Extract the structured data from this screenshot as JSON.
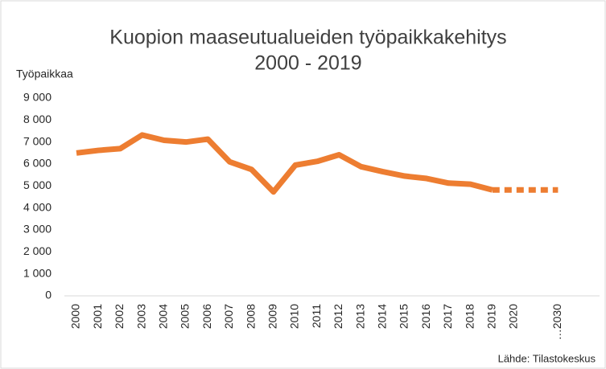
{
  "chart_data": {
    "type": "line",
    "title": [
      "Kuopion maaseutualueiden työpaikkakehitys",
      "2000 - 2019"
    ],
    "y_label": "Työpaikkaa",
    "source": "Lähde: Tilastokeskus",
    "categories": [
      "2000",
      "2001",
      "2002",
      "2003",
      "2004",
      "2005",
      "2006",
      "2007",
      "2008",
      "2009",
      "2010",
      "2011",
      "2012",
      "2013",
      "2014",
      "2015",
      "2016",
      "2017",
      "2018",
      "2019",
      "2020",
      null,
      "…2030"
    ],
    "series": [
      {
        "color": "#ed7d31",
        "style": "solid",
        "values": [
          6500,
          6620,
          6700,
          7320,
          7080,
          7000,
          7130,
          6100,
          5750,
          4730,
          5950,
          6120,
          6420,
          5880,
          5650,
          5450,
          5340,
          5130,
          5080,
          4820,
          null,
          null,
          null
        ]
      },
      {
        "color": "#ed7d31",
        "style": "dashed",
        "values": [
          null,
          null,
          null,
          null,
          null,
          null,
          null,
          null,
          null,
          null,
          null,
          null,
          null,
          null,
          null,
          null,
          null,
          null,
          null,
          4820,
          4820,
          4820,
          4820
        ]
      }
    ],
    "ylim": [
      0,
      9000
    ],
    "yticks": [
      0,
      {
        "value": 1000,
        "label": "1 000"
      },
      {
        "value": 2000,
        "label": "2 000"
      },
      {
        "value": 3000,
        "label": "3 000"
      },
      {
        "value": 4000,
        "label": "4 000"
      },
      {
        "value": 5000,
        "label": "5 000"
      },
      {
        "value": 6000,
        "label": "6 000"
      },
      {
        "value": 7000,
        "label": "7 000"
      },
      {
        "value": 8000,
        "label": "8 000"
      },
      {
        "value": 9000,
        "label": "9 000"
      }
    ],
    "grid": false
  }
}
